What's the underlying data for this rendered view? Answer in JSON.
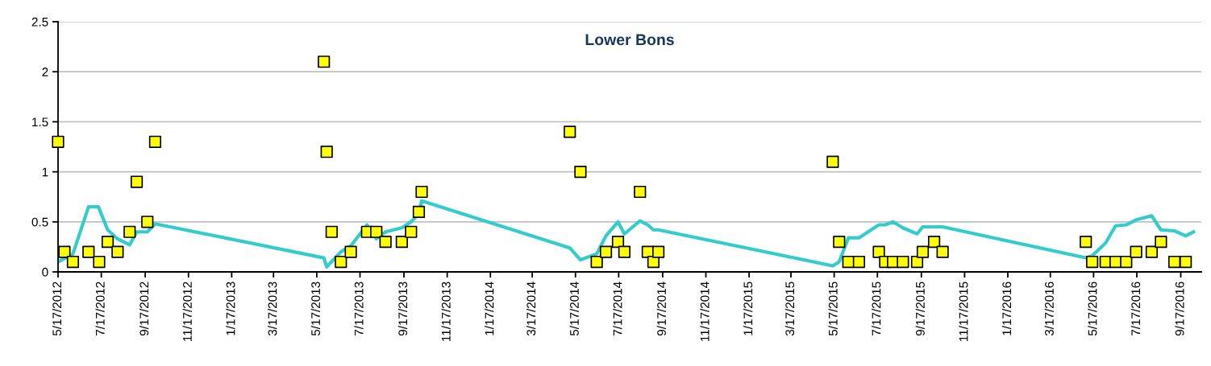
{
  "chart_data": {
    "type": "scatter",
    "title": "Lower Bons",
    "xlim": [
      "2012-05-17",
      "2016-10-16"
    ],
    "ylim": [
      0,
      2.5
    ],
    "yticks": [
      0,
      0.5,
      1,
      1.5,
      2,
      2.5
    ],
    "xticks": [
      {
        "value": "2012-05-17",
        "label": "5/17/2012"
      },
      {
        "value": "2012-07-17",
        "label": "7/17/2012"
      },
      {
        "value": "2012-09-17",
        "label": "9/17/2012"
      },
      {
        "value": "2012-11-17",
        "label": "11/17/2012"
      },
      {
        "value": "2013-01-17",
        "label": "1/17/2013"
      },
      {
        "value": "2013-03-17",
        "label": "3/17/2013"
      },
      {
        "value": "2013-05-17",
        "label": "5/17/2013"
      },
      {
        "value": "2013-07-17",
        "label": "7/17/2013"
      },
      {
        "value": "2013-09-17",
        "label": "9/17/2013"
      },
      {
        "value": "2013-11-17",
        "label": "11/17/2013"
      },
      {
        "value": "2014-01-17",
        "label": "1/17/2014"
      },
      {
        "value": "2014-03-17",
        "label": "3/17/2014"
      },
      {
        "value": "2014-05-17",
        "label": "5/17/2014"
      },
      {
        "value": "2014-07-17",
        "label": "7/17/2014"
      },
      {
        "value": "2014-09-17",
        "label": "9/17/2014"
      },
      {
        "value": "2014-11-17",
        "label": "11/17/2014"
      },
      {
        "value": "2015-01-17",
        "label": "1/17/2015"
      },
      {
        "value": "2015-03-17",
        "label": "3/17/2015"
      },
      {
        "value": "2015-05-17",
        "label": "5/17/2015"
      },
      {
        "value": "2015-07-17",
        "label": "7/17/2015"
      },
      {
        "value": "2015-09-17",
        "label": "9/17/2015"
      },
      {
        "value": "2015-11-17",
        "label": "11/17/2015"
      },
      {
        "value": "2016-01-17",
        "label": "1/17/2016"
      },
      {
        "value": "2016-03-17",
        "label": "3/17/2016"
      },
      {
        "value": "2016-05-17",
        "label": "5/17/2016"
      },
      {
        "value": "2016-07-17",
        "label": "7/17/2016"
      },
      {
        "value": "2016-09-17",
        "label": "9/17/2016"
      }
    ],
    "grid": "y",
    "series": [
      {
        "type": "line",
        "color": "#33cccc",
        "marker": "none",
        "line_style": "solid",
        "x": [
          "2012-05-17",
          "2012-06-07",
          "2012-06-29",
          "2012-07-13",
          "2012-07-26",
          "2012-08-09",
          "2012-08-26",
          "2012-09-05",
          "2012-09-20",
          "2012-10-01",
          "2013-05-27",
          "2013-05-31",
          "2013-06-20",
          "2013-07-04",
          "2013-07-27",
          "2013-08-09",
          "2013-08-22",
          "2013-09-14",
          "2013-09-27",
          "2013-10-08",
          "2013-10-12",
          "2014-05-09",
          "2014-05-24",
          "2014-06-16",
          "2014-06-29",
          "2014-07-16",
          "2014-07-25",
          "2014-08-16",
          "2014-08-27",
          "2014-09-04",
          "2014-09-11",
          "2015-05-15",
          "2015-05-24",
          "2015-06-06",
          "2015-06-21",
          "2015-07-19",
          "2015-07-28",
          "2015-08-08",
          "2015-08-22",
          "2015-09-11",
          "2015-09-19",
          "2015-10-17",
          "2016-05-06",
          "2016-05-15",
          "2016-06-03",
          "2016-06-17",
          "2016-07-02",
          "2016-07-16",
          "2016-08-07",
          "2016-08-20",
          "2016-09-08",
          "2016-09-24",
          "2016-10-05"
        ],
        "values": [
          0.1,
          0.18,
          0.65,
          0.65,
          0.42,
          0.33,
          0.27,
          0.4,
          0.4,
          0.48,
          0.14,
          0.05,
          0.2,
          0.26,
          0.47,
          0.33,
          0.4,
          0.44,
          0.5,
          0.58,
          0.71,
          0.24,
          0.12,
          0.18,
          0.36,
          0.5,
          0.38,
          0.51,
          0.47,
          0.42,
          0.42,
          0.06,
          0.1,
          0.34,
          0.34,
          0.47,
          0.47,
          0.5,
          0.44,
          0.38,
          0.45,
          0.45,
          0.14,
          0.16,
          0.29,
          0.46,
          0.47,
          0.52,
          0.56,
          0.42,
          0.41,
          0.36,
          0.4
        ]
      },
      {
        "color": "#ffff00",
        "marker": "square",
        "x": [
          "2012-05-17",
          "2012-05-26",
          "2012-06-07",
          "2012-06-29",
          "2012-07-14",
          "2012-07-26",
          "2012-08-09",
          "2012-08-26",
          "2012-09-05",
          "2012-09-20",
          "2012-10-01",
          "2013-05-27",
          "2013-05-31",
          "2013-06-07",
          "2013-06-20",
          "2013-07-04",
          "2013-07-27",
          "2013-08-09",
          "2013-08-22",
          "2013-09-14",
          "2013-09-27",
          "2013-10-08",
          "2013-10-12",
          "2014-05-09",
          "2014-05-24",
          "2014-06-16",
          "2014-06-29",
          "2014-07-16",
          "2014-07-25",
          "2014-08-16",
          "2014-08-27",
          "2014-09-04",
          "2014-09-11",
          "2015-05-15",
          "2015-05-24",
          "2015-06-06",
          "2015-06-21",
          "2015-07-19",
          "2015-07-28",
          "2015-08-08",
          "2015-08-22",
          "2015-09-11",
          "2015-09-19",
          "2015-10-05",
          "2015-10-17",
          "2016-05-06",
          "2016-05-15",
          "2016-06-03",
          "2016-06-17",
          "2016-07-02",
          "2016-07-16",
          "2016-08-07",
          "2016-08-20",
          "2016-09-08",
          "2016-09-24"
        ],
        "values": [
          1.3,
          0.2,
          0.1,
          0.2,
          0.1,
          0.3,
          0.2,
          0.4,
          0.9,
          0.5,
          1.3,
          2.1,
          1.2,
          0.4,
          0.1,
          0.2,
          0.4,
          0.4,
          0.3,
          0.3,
          0.4,
          0.6,
          0.8,
          1.4,
          1.0,
          0.1,
          0.2,
          0.3,
          0.2,
          0.8,
          0.2,
          0.1,
          0.2,
          1.1,
          0.3,
          0.1,
          0.1,
          0.2,
          0.1,
          0.1,
          0.1,
          0.1,
          0.2,
          0.3,
          0.2,
          0.3,
          0.1,
          0.1,
          0.1,
          0.1,
          0.2,
          0.2,
          0.3,
          0.1,
          0.1
        ]
      }
    ]
  }
}
